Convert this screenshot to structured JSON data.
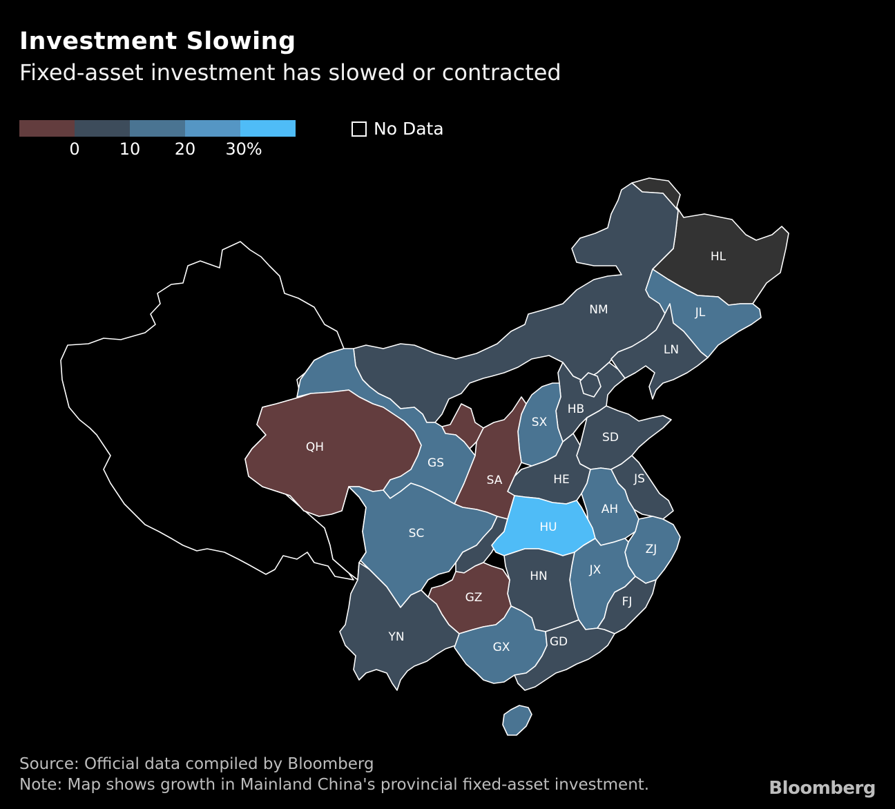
{
  "title": "Investment Slowing",
  "subtitle": "Fixed-asset investment has slowed or contracted",
  "legend": {
    "colors": [
      "#633d3e",
      "#3d4c5b",
      "#4a7492",
      "#5596c4",
      "#4fbcf7"
    ],
    "ticks": [
      "0",
      "10",
      "20",
      "30%"
    ],
    "no_data_label": "No Data"
  },
  "map_colors": {
    "negative": "#633d3e",
    "range_0_10": "#3d4c5b",
    "range_10_20": "#4a7492",
    "range_20_30": "#5596c4",
    "range_30_plus": "#4fbcf7",
    "no_data": "#000000",
    "hl_fill": "#333333"
  },
  "provinces": [
    {
      "code": "HL",
      "category": "hl_fill"
    },
    {
      "code": "JL",
      "category": "range_10_20"
    },
    {
      "code": "LN",
      "category": "range_0_10"
    },
    {
      "code": "NM",
      "category": "range_0_10"
    },
    {
      "code": "HB",
      "category": "range_0_10"
    },
    {
      "code": "SX",
      "category": "range_10_20"
    },
    {
      "code": "SD",
      "category": "range_0_10"
    },
    {
      "code": "JS",
      "category": "range_0_10"
    },
    {
      "code": "HE",
      "category": "range_0_10"
    },
    {
      "code": "AH",
      "category": "range_10_20"
    },
    {
      "code": "SA",
      "category": "negative"
    },
    {
      "code": "GS",
      "category": "range_10_20"
    },
    {
      "code": "QH",
      "category": "negative"
    },
    {
      "code": "SC",
      "category": "range_10_20"
    },
    {
      "code": "HU",
      "category": "range_30_plus"
    },
    {
      "code": "ZJ",
      "category": "range_10_20"
    },
    {
      "code": "JX",
      "category": "range_10_20"
    },
    {
      "code": "HN",
      "category": "range_0_10"
    },
    {
      "code": "FJ",
      "category": "range_0_10"
    },
    {
      "code": "GZ",
      "category": "negative"
    },
    {
      "code": "YN",
      "category": "range_0_10"
    },
    {
      "code": "GX",
      "category": "range_10_20"
    },
    {
      "code": "GD",
      "category": "range_0_10"
    }
  ],
  "footer": {
    "source": "Source: Official data compiled by Bloomberg",
    "note": "Note: Map shows growth in Mainland China's provincial fixed-asset investment.",
    "brand": "Bloomberg"
  }
}
